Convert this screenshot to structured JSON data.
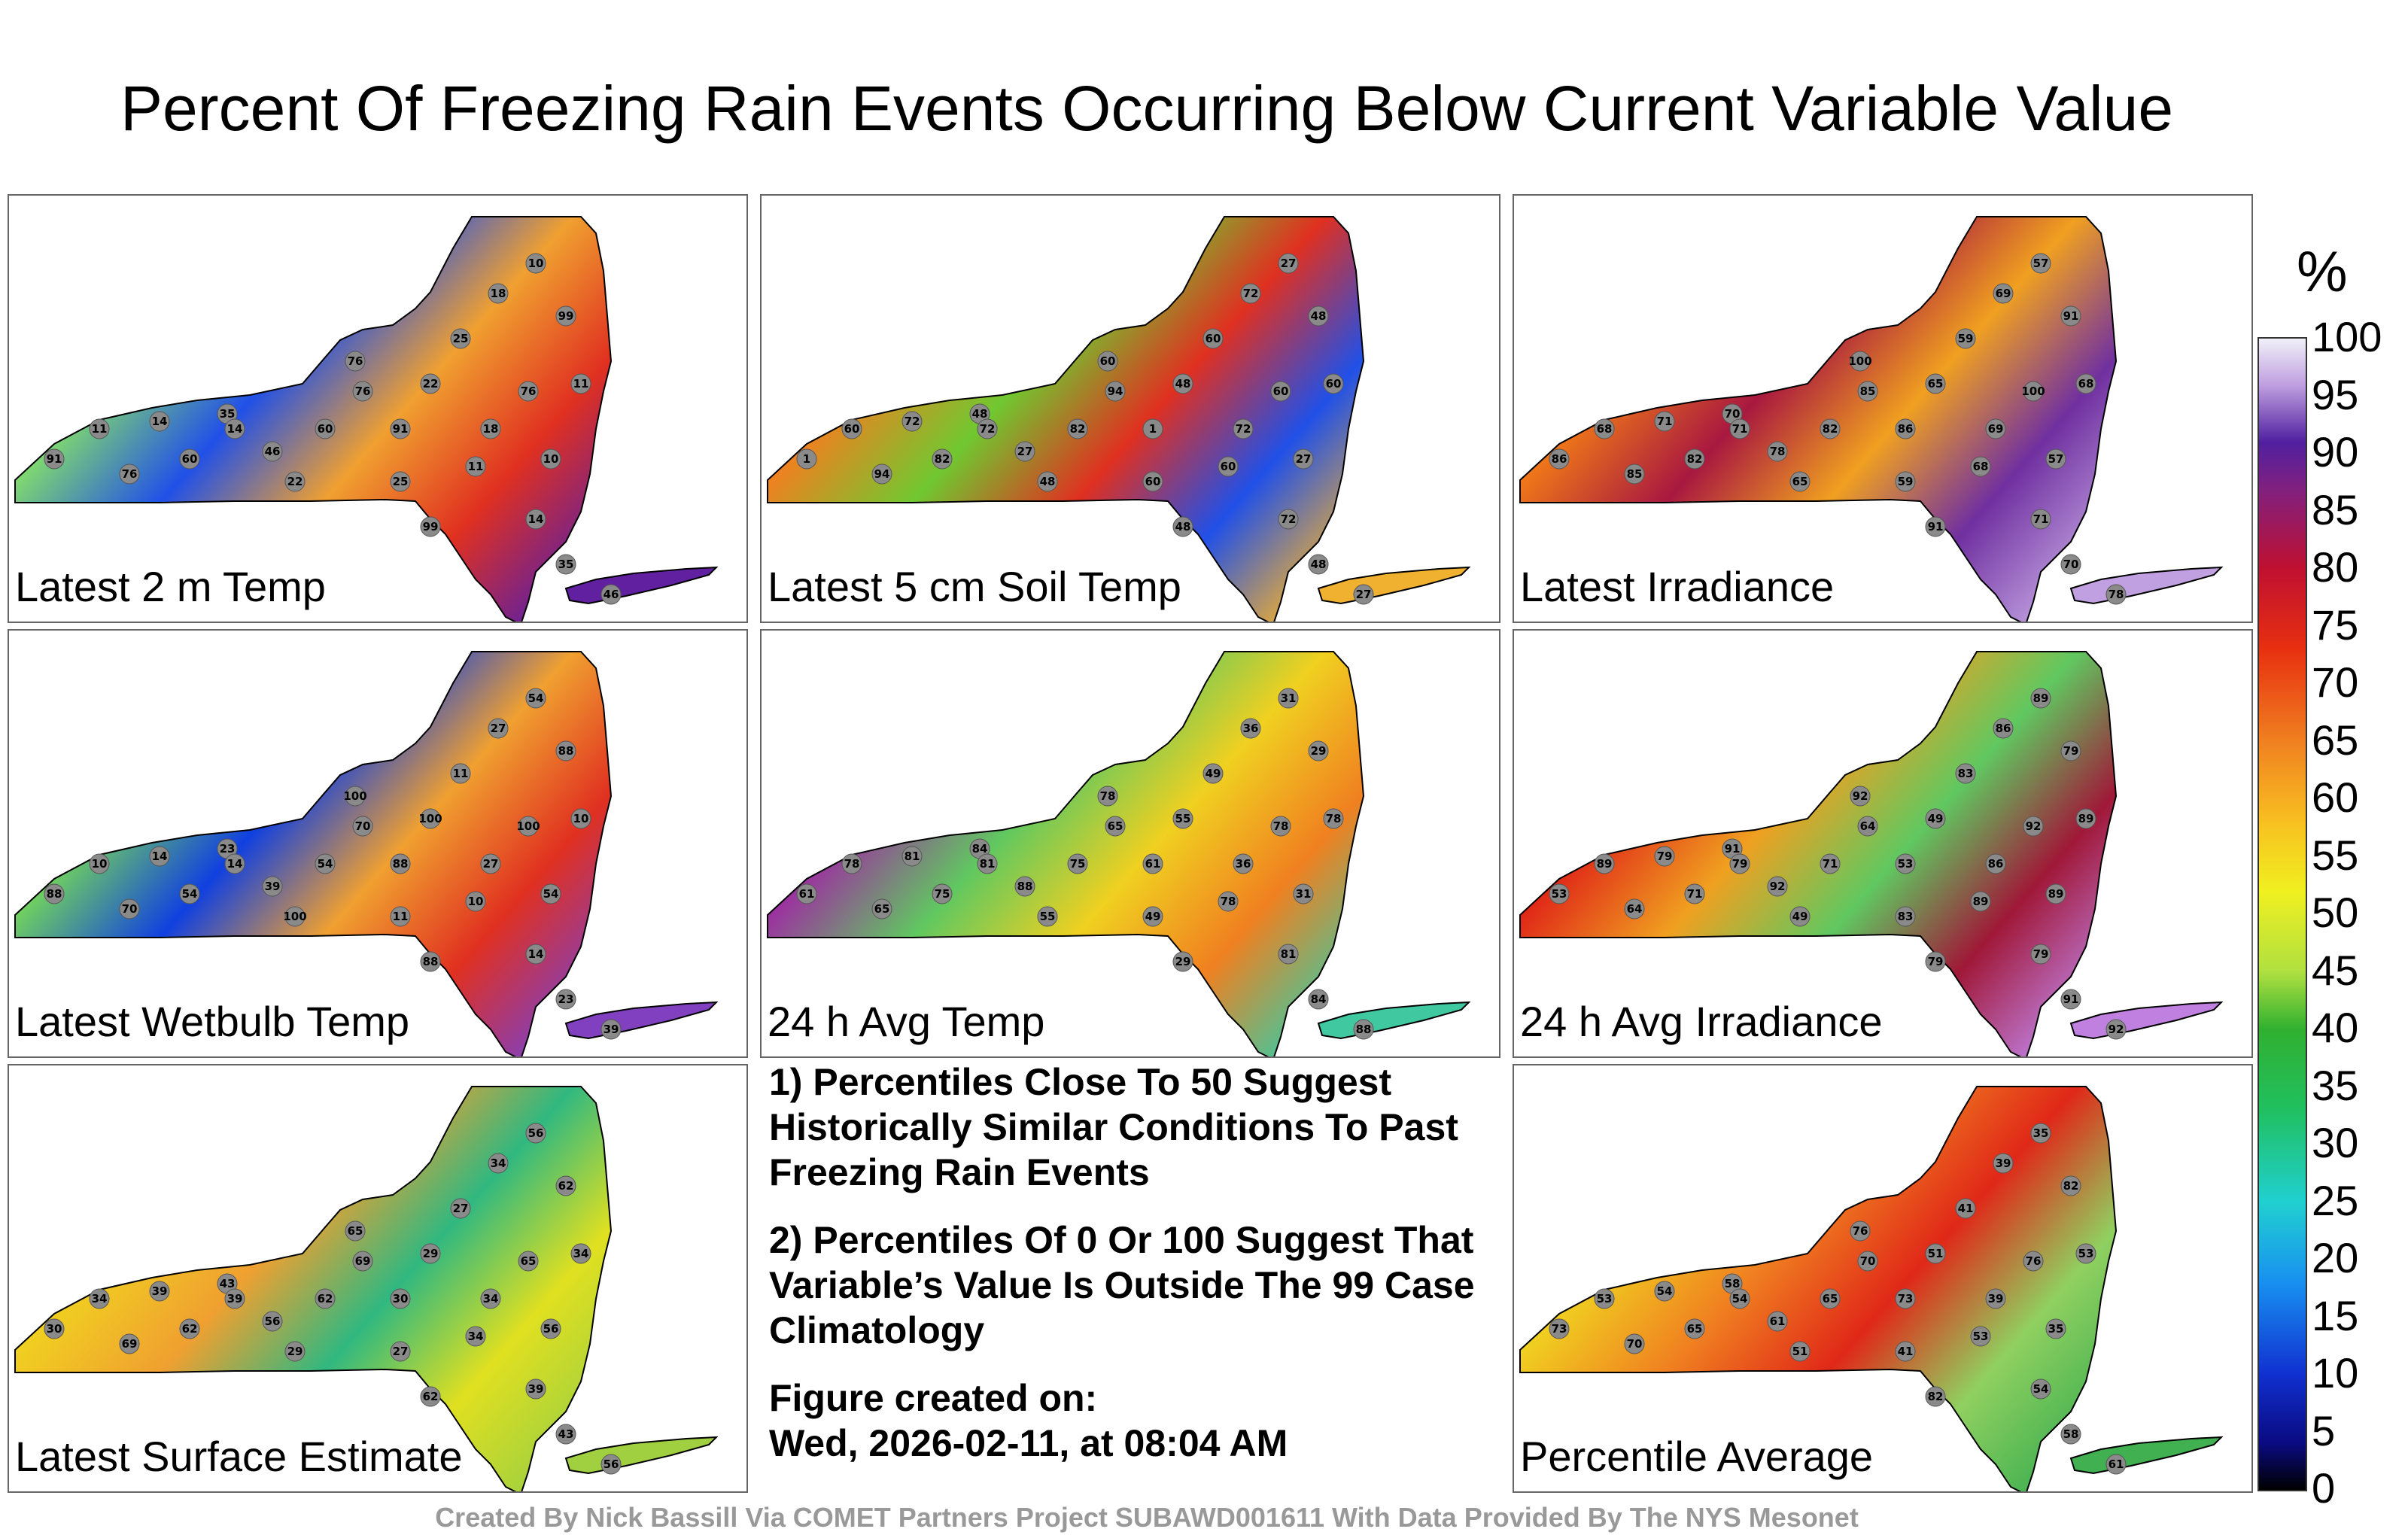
{
  "title": "Percent Of Freezing Rain Events Occurring Below Current Variable Value",
  "panels": [
    {
      "label": "Latest 2 m Temp",
      "colors": [
        "#1fb8e8",
        "#7fd870",
        "#2050e8",
        "#f0a030",
        "#e03020",
        "#6020a0"
      ],
      "values": [
        "11",
        "14",
        "35",
        "46",
        "60",
        "76",
        "91",
        "22",
        "25",
        "18",
        "10",
        "99",
        "76"
      ]
    },
    {
      "label": "Latest 5 cm Soil Temp",
      "colors": [
        "#f8d020",
        "#f08020",
        "#70c830",
        "#e03020",
        "#2050e8",
        "#f0b030"
      ],
      "values": [
        "60",
        "72",
        "48",
        "27",
        "82",
        "94",
        "1",
        "48",
        "60",
        "72",
        "27",
        "48",
        "60"
      ]
    },
    {
      "label": "Latest Irradiance",
      "colors": [
        "#e02818",
        "#f07818",
        "#a81840",
        "#f0a020",
        "#7030a0",
        "#c0a0e0"
      ],
      "values": [
        "68",
        "71",
        "70",
        "78",
        "82",
        "85",
        "86",
        "65",
        "59",
        "69",
        "57",
        "91",
        "100"
      ]
    },
    {
      "label": "Latest Wetbulb Temp",
      "colors": [
        "#30b0e0",
        "#70d060",
        "#1040e0",
        "#f0a030",
        "#e03020",
        "#8040c0"
      ],
      "values": [
        "10",
        "14",
        "23",
        "39",
        "54",
        "70",
        "88",
        "100",
        "11",
        "27",
        "54",
        "88",
        "100"
      ]
    },
    {
      "label": "24 h Avg Temp",
      "colors": [
        "#e82010",
        "#9c30a0",
        "#60c860",
        "#f0d020",
        "#f08020",
        "#40c8a0"
      ],
      "values": [
        "78",
        "81",
        "84",
        "88",
        "75",
        "65",
        "61",
        "55",
        "49",
        "36",
        "31",
        "29",
        "78"
      ]
    },
    {
      "label": "24 h Avg Irradiance",
      "colors": [
        "#7020a0",
        "#e02818",
        "#f0a020",
        "#60c860",
        "#a01838",
        "#c080e0"
      ],
      "values": [
        "89",
        "79",
        "91",
        "92",
        "71",
        "64",
        "53",
        "49",
        "83",
        "86",
        "89",
        "79",
        "92"
      ]
    },
    {
      "label": "Percentile Average",
      "colors": [
        "#60c840",
        "#f0d020",
        "#f08020",
        "#e02818",
        "#90d060",
        "#40b050"
      ],
      "values": [
        "53",
        "54",
        "58",
        "61",
        "65",
        "70",
        "73",
        "51",
        "41",
        "39",
        "35",
        "82",
        "76"
      ]
    },
    {
      "label": "Latest Surface Estimate",
      "colors": [
        "#60c840",
        "#f0d020",
        "#f0a030",
        "#30b880",
        "#e0e020",
        "#a0d040"
      ],
      "values": [
        "34",
        "39",
        "43",
        "56",
        "62",
        "69",
        "30",
        "29",
        "27",
        "34",
        "56",
        "62",
        "65"
      ]
    }
  ],
  "notes": {
    "note1": "1) Percentiles Close To 50 Suggest Historically Similar Conditions To Past Freezing Rain Events",
    "note2": "2) Percentiles Of 0 Or 100 Suggest That Variable’s Value Is Outside The 99 Case Climatology",
    "created_label": "Figure created on:",
    "created_value": "Wed, 2026-02-11, at 08:04 AM"
  },
  "colorbar": {
    "unit": "%",
    "ticks": [
      "100",
      "95",
      "90",
      "85",
      "80",
      "75",
      "70",
      "65",
      "60",
      "55",
      "50",
      "45",
      "40",
      "35",
      "30",
      "25",
      "20",
      "15",
      "10",
      "5",
      "0"
    ]
  },
  "footer": "Created By Nick Bassill Via COMET Partners Project SUBAWD001611 With Data Provided By The NYS Mesonet"
}
